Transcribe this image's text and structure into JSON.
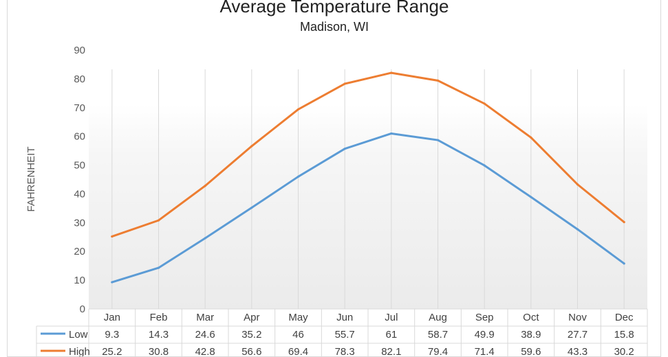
{
  "chart_data": {
    "type": "line",
    "title": "Average Temperature Range",
    "subtitle": "Madison, WI",
    "xlabel": "",
    "ylabel": "FAHRENHEIT",
    "ylim": [
      0,
      90
    ],
    "yticks": [
      0,
      10,
      20,
      30,
      40,
      50,
      60,
      70,
      80,
      90
    ],
    "grid": "vertical",
    "legend": "data-table",
    "categories": [
      "Jan",
      "Feb",
      "Mar",
      "Apr",
      "May",
      "Jun",
      "Jul",
      "Aug",
      "Sep",
      "Oct",
      "Nov",
      "Dec"
    ],
    "series": [
      {
        "name": "Low",
        "color": "#5b9bd5",
        "values": [
          9.3,
          14.3,
          24.6,
          35.2,
          46,
          55.7,
          61,
          58.7,
          49.9,
          38.9,
          27.7,
          15.8
        ],
        "labels": [
          "9.3",
          "14.3",
          "24.6",
          "35.2",
          "46",
          "55.7",
          "61",
          "58.7",
          "49.9",
          "38.9",
          "27.7",
          "15.8"
        ]
      },
      {
        "name": "High",
        "color": "#ed7d31",
        "values": [
          25.2,
          30.8,
          42.8,
          56.6,
          69.4,
          78.3,
          82.1,
          79.4,
          71.4,
          59.6,
          43.3,
          30.2
        ],
        "labels": [
          "25.2",
          "30.8",
          "42.8",
          "56.6",
          "69.4",
          "78.3",
          "82.1",
          "79.4",
          "71.4",
          "59.6",
          "43.3",
          "30.2"
        ]
      }
    ]
  }
}
